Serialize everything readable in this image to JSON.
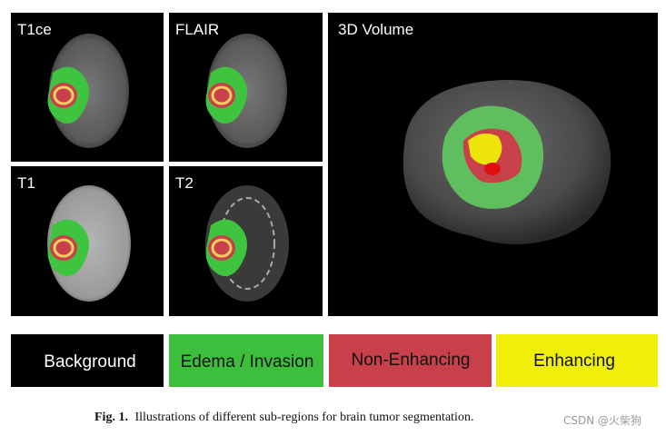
{
  "panels": [
    {
      "label": "T1ce"
    },
    {
      "label": "FLAIR"
    },
    {
      "label": "T1"
    },
    {
      "label": "T2"
    },
    {
      "label": "3D Volume"
    }
  ],
  "legend": [
    {
      "label": "Background"
    },
    {
      "label": "Edema / Invasion"
    },
    {
      "label": "Non-Enhancing"
    },
    {
      "label": "Enhancing"
    }
  ],
  "caption": {
    "label": "Fig. 1.",
    "text": "Illustrations of different sub-regions for brain tumor segmentation."
  },
  "watermark": "CSDN @火柴狗"
}
